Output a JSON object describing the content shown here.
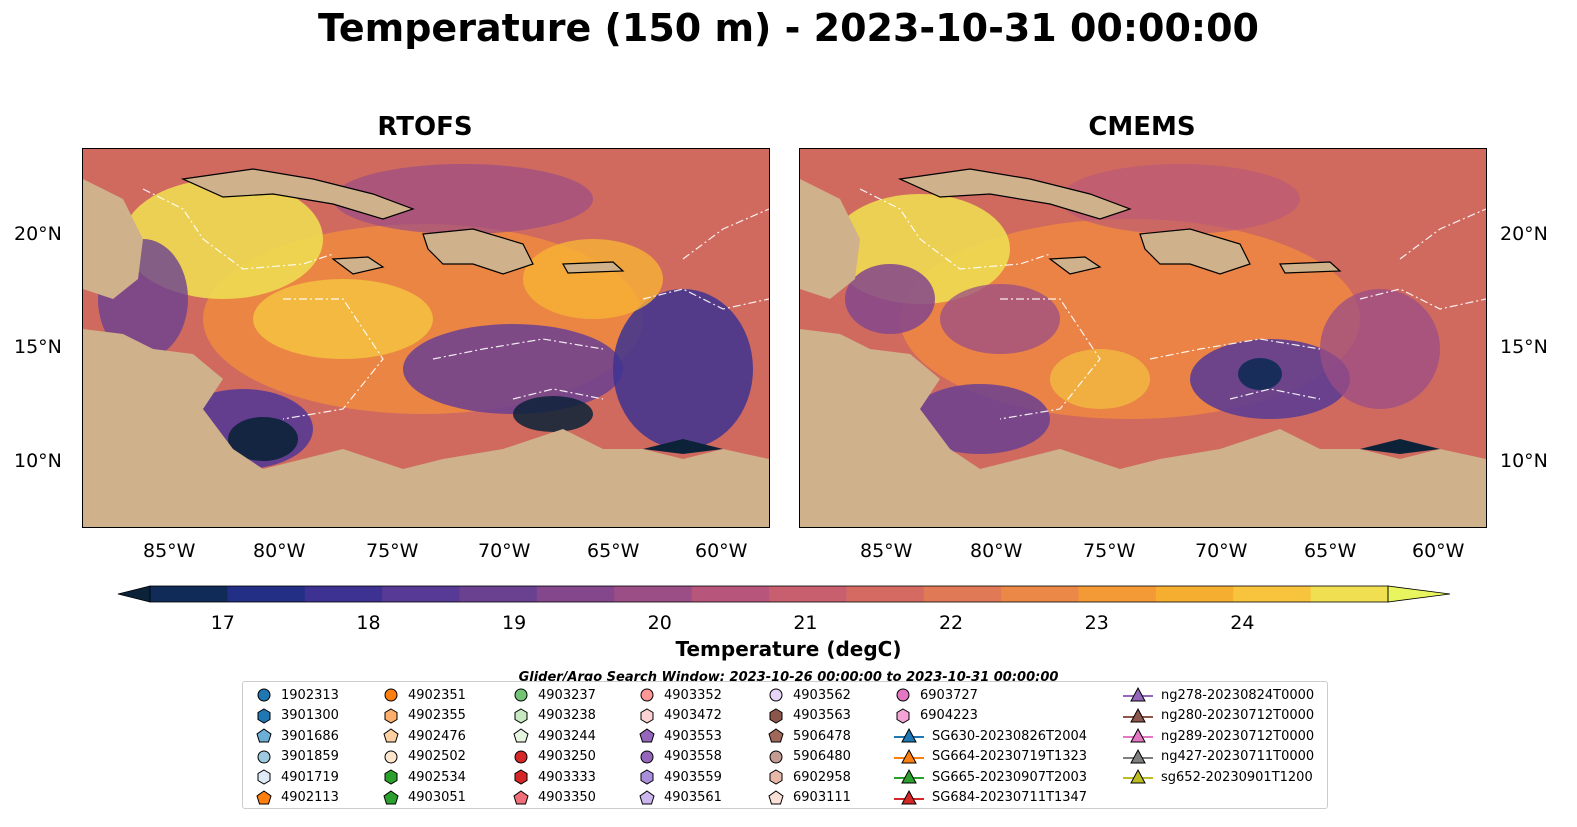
{
  "title": "Temperature (150 m) - 2023-10-31 00:00:00",
  "panels": [
    {
      "title": "RTOFS"
    },
    {
      "title": "CMEMS"
    }
  ],
  "axes": {
    "lon_ticks": [
      "85°W",
      "80°W",
      "75°W",
      "70°W",
      "65°W",
      "60°W"
    ],
    "lat_ticks": [
      "20°N",
      "15°N",
      "10°N"
    ]
  },
  "colorbar": {
    "label": "Temperature (degC)",
    "ticks": [
      "17",
      "18",
      "19",
      "20",
      "21",
      "22",
      "23",
      "24"
    ],
    "colors": [
      "#0b2238",
      "#102b57",
      "#232e85",
      "#3d3292",
      "#573a95",
      "#6a4191",
      "#84478c",
      "#9b4d86",
      "#b7567a",
      "#c75f6f",
      "#d56a63",
      "#e07955",
      "#eb8747",
      "#f39a37",
      "#f6ae30",
      "#f8c43d",
      "#f1df52",
      "#e8f55f"
    ]
  },
  "search_window": "Glider/Argo Search Window: 2023-10-26 00:00:00 to 2023-10-31 00:00:00",
  "legend": {
    "columns": [
      [
        {
          "label": "1902313",
          "marker": "circle",
          "color": "#1f77b4"
        },
        {
          "label": "3901300",
          "marker": "hexagon",
          "color": "#1f77b4"
        },
        {
          "label": "3901686",
          "marker": "pentagon",
          "color": "#6baed6"
        },
        {
          "label": "3901859",
          "marker": "circle",
          "color": "#9ecae1"
        },
        {
          "label": "4901719",
          "marker": "hexagon",
          "color": "#deebf7"
        },
        {
          "label": "4902113",
          "marker": "pentagon",
          "color": "#ff7f0e"
        }
      ],
      [
        {
          "label": "4902351",
          "marker": "circle",
          "color": "#ff7f0e"
        },
        {
          "label": "4902355",
          "marker": "hexagon",
          "color": "#fdae6b"
        },
        {
          "label": "4902476",
          "marker": "pentagon",
          "color": "#fdd0a2"
        },
        {
          "label": "4902502",
          "marker": "circle",
          "color": "#fee6ce"
        },
        {
          "label": "4902534",
          "marker": "hexagon",
          "color": "#2ca02c"
        },
        {
          "label": "4903051",
          "marker": "pentagon",
          "color": "#2ca02c"
        }
      ],
      [
        {
          "label": "4903237",
          "marker": "circle",
          "color": "#74c476"
        },
        {
          "label": "4903238",
          "marker": "hexagon",
          "color": "#c7e9c0"
        },
        {
          "label": "4903244",
          "marker": "pentagon",
          "color": "#e5f5e0"
        },
        {
          "label": "4903250",
          "marker": "circle",
          "color": "#d62728"
        },
        {
          "label": "4903333",
          "marker": "hexagon",
          "color": "#d62728"
        },
        {
          "label": "4903350",
          "marker": "pentagon",
          "color": "#f0707a"
        }
      ],
      [
        {
          "label": "4903352",
          "marker": "circle",
          "color": "#ff9896"
        },
        {
          "label": "4903472",
          "marker": "hexagon",
          "color": "#fcd3d3"
        },
        {
          "label": "4903553",
          "marker": "pentagon",
          "color": "#9467bd"
        },
        {
          "label": "4903558",
          "marker": "circle",
          "color": "#9467bd"
        },
        {
          "label": "4903559",
          "marker": "hexagon",
          "color": "#a98fdb"
        },
        {
          "label": "4903561",
          "marker": "pentagon",
          "color": "#cbb7f0"
        }
      ],
      [
        {
          "label": "4903562",
          "marker": "circle",
          "color": "#e6d5f7"
        },
        {
          "label": "4903563",
          "marker": "hexagon",
          "color": "#8c564b"
        },
        {
          "label": "5906478",
          "marker": "pentagon",
          "color": "#a0685a"
        },
        {
          "label": "5906480",
          "marker": "circle",
          "color": "#c49c94"
        },
        {
          "label": "6902958",
          "marker": "hexagon",
          "color": "#e8b8a8"
        },
        {
          "label": "6903111",
          "marker": "pentagon",
          "color": "#fbe0d8"
        }
      ],
      [
        {
          "label": "6903727",
          "marker": "circle",
          "color": "#e377c2"
        },
        {
          "label": "6904223",
          "marker": "hexagon",
          "color": "#f5a3d6"
        },
        {
          "label": "SG630-20230826T2004",
          "marker": "triangle-line",
          "color": "#1f77b4"
        },
        {
          "label": "SG664-20230719T1323",
          "marker": "triangle-line",
          "color": "#ff7f0e"
        },
        {
          "label": "SG665-20230907T2003",
          "marker": "triangle-line",
          "color": "#2ca02c"
        },
        {
          "label": "SG684-20230711T1347",
          "marker": "triangle-line",
          "color": "#d62728"
        }
      ],
      [
        {
          "label": "ng278-20230824T0000",
          "marker": "triangle-line",
          "color": "#9467bd"
        },
        {
          "label": "ng280-20230712T0000",
          "marker": "triangle-line",
          "color": "#8c564b"
        },
        {
          "label": "ng289-20230712T0000",
          "marker": "triangle-line",
          "color": "#e377c2"
        },
        {
          "label": "ng427-20230711T0000",
          "marker": "triangle-line",
          "color": "#7f7f7f"
        },
        {
          "label": "sg652-20230901T1200",
          "marker": "triangle-line",
          "color": "#bcbd22"
        }
      ]
    ]
  }
}
